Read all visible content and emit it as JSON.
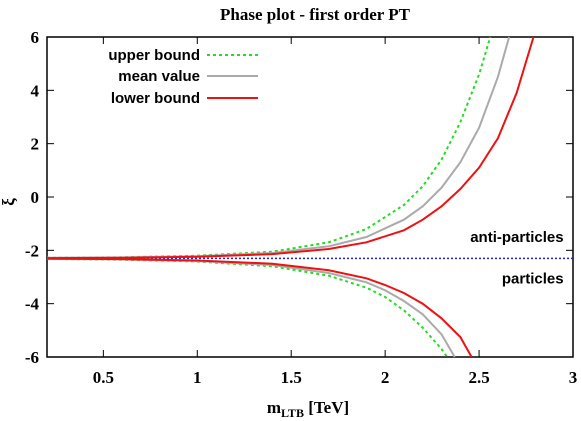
{
  "chart_data": {
    "type": "line",
    "title": "Phase plot - first order PT",
    "xlabel": "m",
    "xlabel_sub": "LTB",
    "xlabel_unit": " [TeV]",
    "ylabel": "ξ",
    "xlim": [
      0.2,
      3.0
    ],
    "ylim": [
      -6,
      6
    ],
    "x_ticks": [
      0.5,
      1,
      1.5,
      2,
      2.5,
      3
    ],
    "x_tick_labels": [
      "0.5",
      "1",
      "1.5",
      "2",
      "2.5",
      "3"
    ],
    "y_ticks": [
      -6,
      -4,
      -2,
      0,
      2,
      4,
      6
    ],
    "y_tick_labels": [
      "-6",
      "-4",
      "-2",
      "0",
      "2",
      "4",
      "6"
    ],
    "legend_position": "top-left",
    "grid": false,
    "series": [
      {
        "name": "upper bound",
        "color": "#22dd22",
        "style": "dotted",
        "upper_branch": [
          [
            0.2,
            -2.28
          ],
          [
            0.6,
            -2.26
          ],
          [
            1.0,
            -2.2
          ],
          [
            1.4,
            -2.05
          ],
          [
            1.7,
            -1.7
          ],
          [
            1.9,
            -1.2
          ],
          [
            2.1,
            -0.3
          ],
          [
            2.2,
            0.4
          ],
          [
            2.3,
            1.4
          ],
          [
            2.4,
            2.8
          ],
          [
            2.5,
            4.6
          ],
          [
            2.56,
            6.0
          ]
        ],
        "lower_branch": [
          [
            0.2,
            -2.32
          ],
          [
            0.6,
            -2.35
          ],
          [
            1.0,
            -2.42
          ],
          [
            1.4,
            -2.6
          ],
          [
            1.7,
            -2.95
          ],
          [
            1.9,
            -3.4
          ],
          [
            2.0,
            -3.75
          ],
          [
            2.1,
            -4.25
          ],
          [
            2.2,
            -4.9
          ],
          [
            2.3,
            -5.7
          ],
          [
            2.33,
            -6.0
          ]
        ]
      },
      {
        "name": "mean value",
        "color": "#aaaaaa",
        "style": "solid",
        "upper_branch": [
          [
            0.2,
            -2.28
          ],
          [
            0.6,
            -2.27
          ],
          [
            1.0,
            -2.22
          ],
          [
            1.4,
            -2.1
          ],
          [
            1.7,
            -1.85
          ],
          [
            1.9,
            -1.5
          ],
          [
            2.1,
            -0.85
          ],
          [
            2.2,
            -0.35
          ],
          [
            2.3,
            0.35
          ],
          [
            2.4,
            1.3
          ],
          [
            2.5,
            2.6
          ],
          [
            2.6,
            4.5
          ],
          [
            2.66,
            6.0
          ]
        ],
        "lower_branch": [
          [
            0.2,
            -2.32
          ],
          [
            0.6,
            -2.34
          ],
          [
            1.0,
            -2.4
          ],
          [
            1.4,
            -2.55
          ],
          [
            1.7,
            -2.85
          ],
          [
            1.9,
            -3.2
          ],
          [
            2.0,
            -3.5
          ],
          [
            2.1,
            -3.9
          ],
          [
            2.2,
            -4.4
          ],
          [
            2.3,
            -5.15
          ],
          [
            2.37,
            -6.0
          ]
        ]
      },
      {
        "name": "lower bound",
        "color": "#ee1111",
        "style": "solid",
        "upper_branch": [
          [
            0.2,
            -2.29
          ],
          [
            0.6,
            -2.28
          ],
          [
            1.0,
            -2.24
          ],
          [
            1.4,
            -2.14
          ],
          [
            1.7,
            -1.95
          ],
          [
            1.9,
            -1.7
          ],
          [
            2.1,
            -1.25
          ],
          [
            2.2,
            -0.85
          ],
          [
            2.3,
            -0.35
          ],
          [
            2.4,
            0.3
          ],
          [
            2.5,
            1.1
          ],
          [
            2.6,
            2.2
          ],
          [
            2.7,
            3.9
          ],
          [
            2.79,
            6.0
          ]
        ],
        "lower_branch": [
          [
            0.2,
            -2.31
          ],
          [
            0.6,
            -2.33
          ],
          [
            1.0,
            -2.38
          ],
          [
            1.4,
            -2.5
          ],
          [
            1.7,
            -2.75
          ],
          [
            1.9,
            -3.05
          ],
          [
            2.0,
            -3.3
          ],
          [
            2.1,
            -3.6
          ],
          [
            2.2,
            -4.0
          ],
          [
            2.3,
            -4.55
          ],
          [
            2.4,
            -5.25
          ],
          [
            2.46,
            -6.0
          ]
        ]
      }
    ],
    "reference_line": {
      "y": -2.3,
      "color": "#2222cc",
      "style": "dotted"
    },
    "annotations": [
      {
        "text": "anti-particles",
        "x": 2.95,
        "y": -1.5
      },
      {
        "text": "particles",
        "x": 2.95,
        "y": -3.05
      }
    ]
  }
}
